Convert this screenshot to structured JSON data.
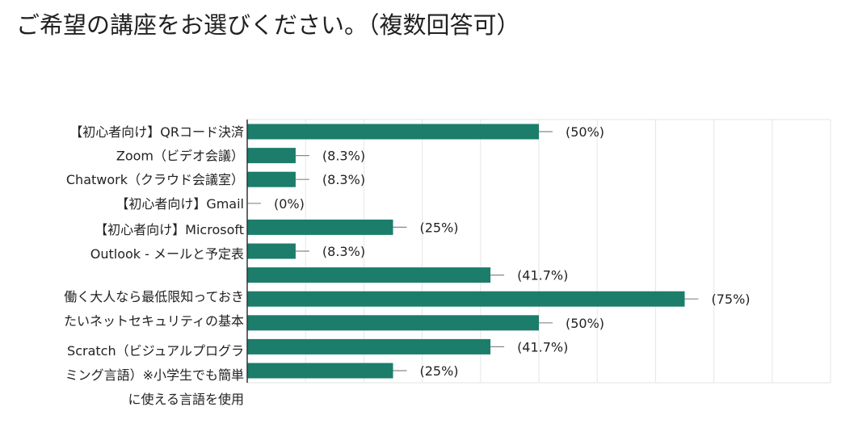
{
  "title": "ご希望の講座をお選びください。（複数回答可）",
  "chart_data": {
    "type": "bar",
    "orientation": "horizontal",
    "title": "ご希望の講座をお選びください。（複数回答可）",
    "xlim": [
      0,
      100
    ],
    "grid": true,
    "bar_color": "#1b7d6a",
    "categories": [
      "【初心者向け】QRコード決済",
      "Zoom（ビデオ会議）",
      "Chatwork（クラウド会議室）",
      "【初心者向け】Gmail",
      "",
      "【初心者向け】Microsoft Outlook - メールと予定表",
      "",
      "働く大人なら最低限知っておきたいネットセキュリティの基本",
      "",
      "Scratch（ビジュアルプログラミング言語）※小学生でも簡単に使える言語を使用",
      ""
    ],
    "values": [
      50,
      8.3,
      8.3,
      0,
      25,
      8.3,
      41.7,
      75,
      50,
      41.7,
      25
    ],
    "value_labels": [
      "(50%)",
      "(8.3%)",
      "(8.3%)",
      "(0%)",
      "(25%)",
      "(8.3%)",
      "(41.7%)",
      "(75%)",
      "(50%)",
      "(41.7%)",
      "(25%)"
    ],
    "visible_label_lines": [
      {
        "row": 0,
        "lines": [
          "【初心者向け】QRコード決済"
        ]
      },
      {
        "row": 1,
        "lines": [
          "Zoom（ビデオ会議）"
        ]
      },
      {
        "row": 2,
        "lines": [
          "Chatwork（クラウド会議室）"
        ]
      },
      {
        "row": 3,
        "lines": [
          "【初心者向け】Gmail"
        ]
      },
      {
        "row": 5,
        "lines": [
          "【初心者向け】Microsoft",
          "Outlook - メールと予定表"
        ]
      },
      {
        "row": 7,
        "lines": [
          "働く大人なら最低限知っておき",
          "たいネットセキュリティの基本"
        ]
      },
      {
        "row": 9,
        "lines": [
          "Scratch（ビジュアルプログラ",
          "ミング言語）※小学生でも簡単",
          "に使える言語を使用"
        ]
      }
    ]
  }
}
